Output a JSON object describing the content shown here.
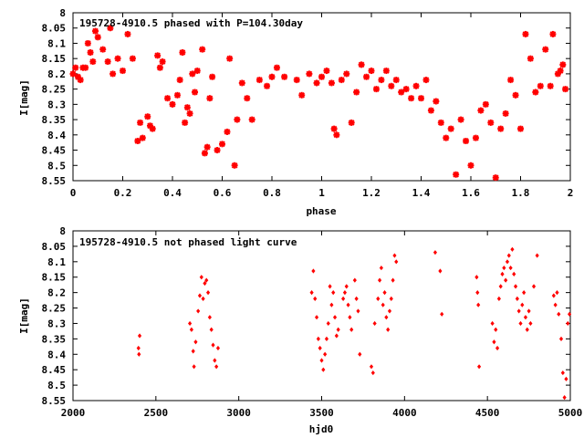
{
  "chart_data": [
    {
      "type": "scatter",
      "title": "195728-4910.5 phased with P=104.30day",
      "xlabel": "phase",
      "ylabel": "I[mag]",
      "xlim": [
        0,
        2
      ],
      "ylim": [
        8.55,
        8.0
      ],
      "y_inverted": true,
      "marker_color": "#ff0000",
      "marker": "star",
      "xticks": [
        "0",
        "0.2",
        "0.4",
        "0.6",
        "0.8",
        "1",
        "1.2",
        "1.4",
        "1.6",
        "1.8",
        "2"
      ],
      "yticks": [
        "8",
        "8.05",
        "8.1",
        "8.15",
        "8.2",
        "8.25",
        "8.3",
        "8.35",
        "8.4",
        "8.45",
        "8.5",
        "8.55"
      ],
      "series": [
        {
          "points": [
            [
              0.0,
              8.2
            ],
            [
              0.01,
              8.18
            ],
            [
              0.02,
              8.21
            ],
            [
              0.03,
              8.22
            ],
            [
              0.04,
              8.18
            ],
            [
              0.05,
              8.18
            ],
            [
              0.06,
              8.1
            ],
            [
              0.07,
              8.13
            ],
            [
              0.08,
              8.16
            ],
            [
              0.09,
              8.06
            ],
            [
              0.1,
              8.08
            ],
            [
              0.12,
              8.12
            ],
            [
              0.14,
              8.16
            ],
            [
              0.15,
              8.05
            ],
            [
              0.16,
              8.2
            ],
            [
              0.18,
              8.15
            ],
            [
              0.2,
              8.19
            ],
            [
              0.22,
              8.07
            ],
            [
              0.24,
              8.15
            ],
            [
              0.26,
              8.42
            ],
            [
              0.27,
              8.36
            ],
            [
              0.28,
              8.41
            ],
            [
              0.3,
              8.34
            ],
            [
              0.31,
              8.37
            ],
            [
              0.32,
              8.38
            ],
            [
              0.34,
              8.14
            ],
            [
              0.35,
              8.18
            ],
            [
              0.36,
              8.16
            ],
            [
              0.38,
              8.28
            ],
            [
              0.4,
              8.3
            ],
            [
              0.42,
              8.27
            ],
            [
              0.43,
              8.22
            ],
            [
              0.44,
              8.13
            ],
            [
              0.45,
              8.36
            ],
            [
              0.46,
              8.31
            ],
            [
              0.47,
              8.33
            ],
            [
              0.48,
              8.2
            ],
            [
              0.49,
              8.26
            ],
            [
              0.5,
              8.19
            ],
            [
              0.52,
              8.12
            ],
            [
              0.53,
              8.46
            ],
            [
              0.54,
              8.44
            ],
            [
              0.55,
              8.28
            ],
            [
              0.56,
              8.21
            ],
            [
              0.58,
              8.45
            ],
            [
              0.6,
              8.43
            ],
            [
              0.62,
              8.39
            ],
            [
              0.63,
              8.15
            ],
            [
              0.65,
              8.5
            ],
            [
              0.66,
              8.35
            ],
            [
              0.68,
              8.23
            ],
            [
              0.7,
              8.28
            ],
            [
              0.72,
              8.35
            ],
            [
              0.75,
              8.22
            ],
            [
              0.78,
              8.24
            ],
            [
              0.8,
              8.21
            ],
            [
              0.82,
              8.18
            ],
            [
              0.85,
              8.21
            ],
            [
              0.9,
              8.22
            ],
            [
              0.92,
              8.27
            ],
            [
              0.95,
              8.2
            ],
            [
              0.98,
              8.23
            ],
            [
              1.0,
              8.21
            ],
            [
              1.02,
              8.19
            ],
            [
              1.04,
              8.23
            ],
            [
              1.05,
              8.38
            ],
            [
              1.06,
              8.4
            ],
            [
              1.08,
              8.22
            ],
            [
              1.1,
              8.2
            ],
            [
              1.12,
              8.36
            ],
            [
              1.14,
              8.26
            ],
            [
              1.16,
              8.17
            ],
            [
              1.18,
              8.21
            ],
            [
              1.2,
              8.19
            ],
            [
              1.22,
              8.25
            ],
            [
              1.24,
              8.22
            ],
            [
              1.26,
              8.19
            ],
            [
              1.28,
              8.24
            ],
            [
              1.3,
              8.22
            ],
            [
              1.32,
              8.26
            ],
            [
              1.34,
              8.25
            ],
            [
              1.36,
              8.28
            ],
            [
              1.38,
              8.24
            ],
            [
              1.4,
              8.28
            ],
            [
              1.42,
              8.22
            ],
            [
              1.44,
              8.32
            ],
            [
              1.46,
              8.29
            ],
            [
              1.48,
              8.36
            ],
            [
              1.5,
              8.41
            ],
            [
              1.52,
              8.38
            ],
            [
              1.54,
              8.53
            ],
            [
              1.56,
              8.35
            ],
            [
              1.58,
              8.42
            ],
            [
              1.6,
              8.5
            ],
            [
              1.62,
              8.41
            ],
            [
              1.64,
              8.32
            ],
            [
              1.66,
              8.3
            ],
            [
              1.68,
              8.36
            ],
            [
              1.7,
              8.54
            ],
            [
              1.72,
              8.38
            ],
            [
              1.74,
              8.33
            ],
            [
              1.76,
              8.22
            ],
            [
              1.78,
              8.27
            ],
            [
              1.8,
              8.38
            ],
            [
              1.82,
              8.07
            ],
            [
              1.84,
              8.15
            ],
            [
              1.86,
              8.26
            ],
            [
              1.88,
              8.24
            ],
            [
              1.9,
              8.12
            ],
            [
              1.92,
              8.24
            ],
            [
              1.93,
              8.07
            ],
            [
              1.95,
              8.2
            ],
            [
              1.96,
              8.19
            ],
            [
              1.97,
              8.17
            ],
            [
              1.98,
              8.25
            ]
          ]
        }
      ]
    },
    {
      "type": "scatter",
      "title": "195728-4910.5 not phased light curve",
      "xlabel": "hjd0",
      "ylabel": "I[mag]",
      "xlim": [
        2000,
        5000
      ],
      "ylim": [
        8.55,
        8.0
      ],
      "y_inverted": true,
      "marker_color": "#ff0000",
      "marker": "diamond",
      "xticks": [
        "2000",
        "2500",
        "3000",
        "3500",
        "4000",
        "4500",
        "5000"
      ],
      "yticks": [
        "8",
        "8.05",
        "8.1",
        "8.15",
        "8.2",
        "8.25",
        "8.3",
        "8.35",
        "8.4",
        "8.45",
        "8.5",
        "8.55"
      ],
      "series": [
        {
          "points": [
            [
              2395,
              8.38
            ],
            [
              2398,
              8.4
            ],
            [
              2402,
              8.34
            ],
            [
              2705,
              8.3
            ],
            [
              2715,
              8.32
            ],
            [
              2725,
              8.39
            ],
            [
              2730,
              8.44
            ],
            [
              2740,
              8.36
            ],
            [
              2755,
              8.26
            ],
            [
              2765,
              8.21
            ],
            [
              2775,
              8.15
            ],
            [
              2785,
              8.22
            ],
            [
              2795,
              8.17
            ],
            [
              2805,
              8.16
            ],
            [
              2815,
              8.2
            ],
            [
              2825,
              8.28
            ],
            [
              2835,
              8.32
            ],
            [
              2845,
              8.37
            ],
            [
              2855,
              8.42
            ],
            [
              2865,
              8.44
            ],
            [
              2875,
              8.38
            ],
            [
              3440,
              8.2
            ],
            [
              3450,
              8.13
            ],
            [
              3460,
              8.22
            ],
            [
              3470,
              8.28
            ],
            [
              3480,
              8.35
            ],
            [
              3490,
              8.38
            ],
            [
              3500,
              8.42
            ],
            [
              3510,
              8.45
            ],
            [
              3520,
              8.4
            ],
            [
              3530,
              8.35
            ],
            [
              3540,
              8.3
            ],
            [
              3550,
              8.18
            ],
            [
              3560,
              8.24
            ],
            [
              3570,
              8.2
            ],
            [
              3580,
              8.28
            ],
            [
              3590,
              8.34
            ],
            [
              3600,
              8.32
            ],
            [
              3630,
              8.22
            ],
            [
              3640,
              8.2
            ],
            [
              3650,
              8.18
            ],
            [
              3660,
              8.24
            ],
            [
              3670,
              8.28
            ],
            [
              3680,
              8.32
            ],
            [
              3700,
              8.16
            ],
            [
              3710,
              8.22
            ],
            [
              3720,
              8.26
            ],
            [
              3730,
              8.4
            ],
            [
              3800,
              8.44
            ],
            [
              3810,
              8.46
            ],
            [
              3820,
              8.3
            ],
            [
              3840,
              8.22
            ],
            [
              3850,
              8.16
            ],
            [
              3860,
              8.12
            ],
            [
              3870,
              8.24
            ],
            [
              3880,
              8.2
            ],
            [
              3890,
              8.28
            ],
            [
              3900,
              8.32
            ],
            [
              3910,
              8.26
            ],
            [
              3920,
              8.22
            ],
            [
              3930,
              8.16
            ],
            [
              3940,
              8.08
            ],
            [
              3950,
              8.1
            ],
            [
              4185,
              8.07
            ],
            [
              4215,
              8.13
            ],
            [
              4225,
              8.27
            ],
            [
              4435,
              8.15
            ],
            [
              4440,
              8.2
            ],
            [
              4445,
              8.24
            ],
            [
              4450,
              8.44
            ],
            [
              4530,
              8.3
            ],
            [
              4540,
              8.36
            ],
            [
              4550,
              8.32
            ],
            [
              4560,
              8.38
            ],
            [
              4570,
              8.22
            ],
            [
              4580,
              8.18
            ],
            [
              4590,
              8.14
            ],
            [
              4600,
              8.12
            ],
            [
              4610,
              8.16
            ],
            [
              4620,
              8.1
            ],
            [
              4630,
              8.08
            ],
            [
              4640,
              8.12
            ],
            [
              4650,
              8.06
            ],
            [
              4660,
              8.14
            ],
            [
              4670,
              8.18
            ],
            [
              4680,
              8.22
            ],
            [
              4690,
              8.26
            ],
            [
              4700,
              8.3
            ],
            [
              4710,
              8.24
            ],
            [
              4720,
              8.2
            ],
            [
              4730,
              8.28
            ],
            [
              4740,
              8.32
            ],
            [
              4750,
              8.26
            ],
            [
              4760,
              8.3
            ],
            [
              4780,
              8.18
            ],
            [
              4800,
              8.08
            ],
            [
              4900,
              8.21
            ],
            [
              4910,
              8.24
            ],
            [
              4920,
              8.2
            ],
            [
              4930,
              8.27
            ],
            [
              4945,
              8.35
            ],
            [
              4955,
              8.46
            ],
            [
              4965,
              8.54
            ],
            [
              4975,
              8.48
            ],
            [
              4985,
              8.3
            ],
            [
              4995,
              8.27
            ]
          ]
        }
      ]
    }
  ]
}
